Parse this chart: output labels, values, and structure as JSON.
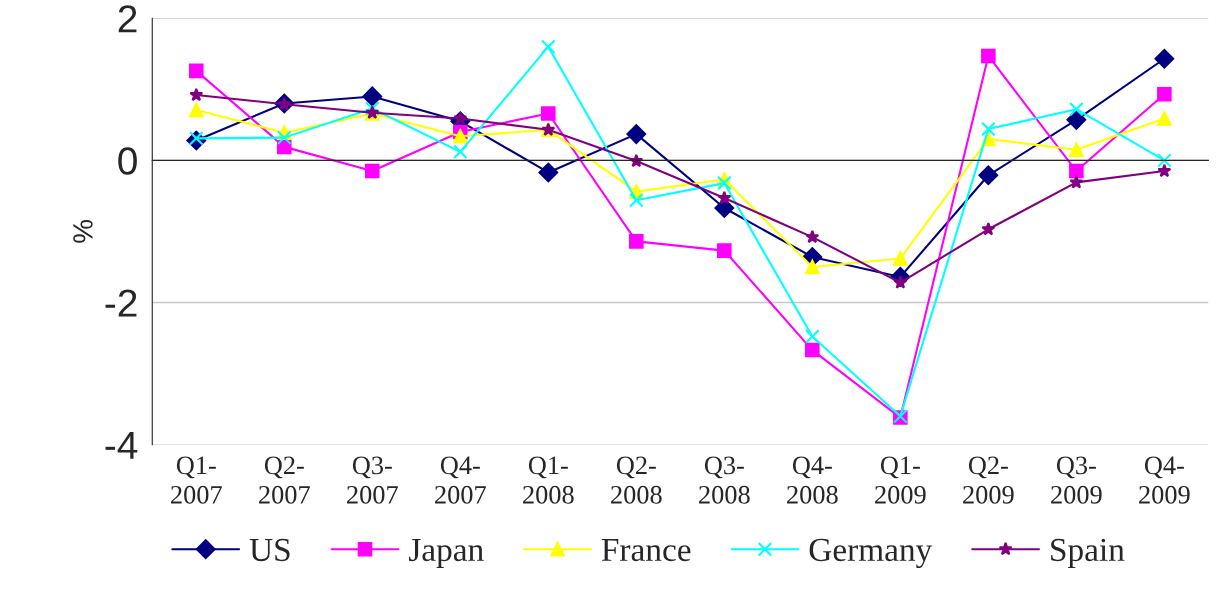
{
  "chart_data": {
    "type": "line",
    "ylabel": "%",
    "categories": [
      "Q1-\n2007",
      "Q2-\n2007",
      "Q3-\n2007",
      "Q4-\n2007",
      "Q1-\n2008",
      "Q2-\n2008",
      "Q3-\n2008",
      "Q4-\n2008",
      "Q1-\n2009",
      "Q2-\n2009",
      "Q3-\n2009",
      "Q4-\n2009"
    ],
    "series": [
      {
        "name": "US",
        "color": "#000080",
        "marker": "diamond",
        "values": [
          0.28,
          0.8,
          0.9,
          0.55,
          -0.17,
          0.37,
          -0.67,
          -1.36,
          -1.64,
          -0.21,
          0.57,
          1.43
        ]
      },
      {
        "name": "Japan",
        "color": "#ff00ff",
        "marker": "square",
        "values": [
          1.26,
          0.19,
          -0.15,
          0.4,
          0.66,
          -1.14,
          -1.27,
          -2.67,
          -3.62,
          1.47,
          -0.15,
          0.93
        ]
      },
      {
        "name": "France",
        "color": "#ffff00",
        "marker": "triangle",
        "values": [
          0.71,
          0.39,
          0.66,
          0.34,
          0.43,
          -0.44,
          -0.27,
          -1.5,
          -1.38,
          0.3,
          0.15,
          0.59
        ]
      },
      {
        "name": "Germany",
        "color": "#00ffff",
        "marker": "cross",
        "values": [
          0.31,
          0.32,
          0.73,
          0.12,
          1.6,
          -0.56,
          -0.32,
          -2.48,
          -3.6,
          0.44,
          0.72,
          0.0
        ]
      },
      {
        "name": "Spain",
        "color": "#800080",
        "marker": "star",
        "values": [
          0.92,
          0.79,
          0.67,
          0.59,
          0.43,
          -0.01,
          -0.53,
          -1.08,
          -1.72,
          -0.97,
          -0.31,
          -0.15
        ]
      }
    ],
    "ylim": [
      -4,
      2
    ],
    "yticks": [
      -4,
      -2,
      0,
      2
    ],
    "grid": "y",
    "legend": "bottom",
    "line_style": "solid"
  }
}
